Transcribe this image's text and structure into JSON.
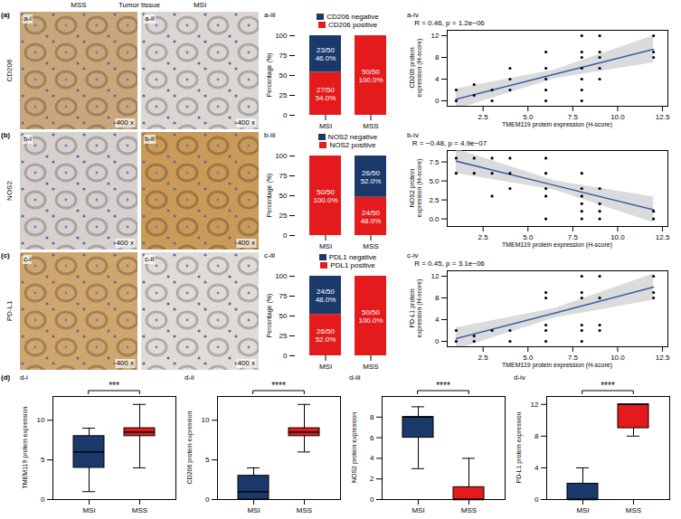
{
  "headers": [
    "MSS",
    "Tumor tissue",
    "MSI"
  ],
  "rows": [
    {
      "letter": "(a)",
      "marker": "CD206",
      "images": [
        {
          "panel": "a-i",
          "magnification": "400 x",
          "color": "#c9a77a"
        },
        {
          "panel": "a-ii",
          "magnification": "400 x",
          "color": "#dcd6d2"
        }
      ]
    },
    {
      "letter": "(b)",
      "marker": "NOS2",
      "images": [
        {
          "panel": "b-i",
          "magnification": "400 x",
          "color": "#d6d1cf"
        },
        {
          "panel": "b-ii",
          "magnification": "400 x",
          "color": "#c99a58"
        }
      ]
    },
    {
      "letter": "(c)",
      "marker": "PD-L1",
      "images": [
        {
          "panel": "c-i",
          "magnification": "400 x",
          "color": "#cfa66e"
        },
        {
          "panel": "c-ii",
          "magnification": "400 x",
          "color": "#e0dbd6"
        }
      ]
    }
  ],
  "row_d_letter": "(d)",
  "chart_data": [
    {
      "panel": "a-iii",
      "type": "bar",
      "stacked": true,
      "categories": [
        "MSI",
        "MSS"
      ],
      "ylabel": "Percentage (%)",
      "ylim": [
        0,
        100
      ],
      "yticks": [
        0,
        25,
        50,
        75,
        100
      ],
      "legend": "top",
      "data_labels": true,
      "series": [
        {
          "name": "CD206 negative",
          "color": "#1b3a6b",
          "values": [
            46,
            0
          ],
          "value_labels": [
            "23/50\n46.0%",
            null
          ]
        },
        {
          "name": "CD206 positive",
          "color": "#e41a1c",
          "values": [
            54,
            100
          ],
          "value_labels": [
            "27/50\n54.0%",
            "50/50\n100.0%"
          ]
        }
      ]
    },
    {
      "panel": "a-iv",
      "type": "scatter",
      "color": "#000000",
      "xlabel": "TMEM119 protein expression (H-score)",
      "ylabel": "CD206 protein expression (H-score)",
      "xlim": [
        0.5,
        12.8
      ],
      "xticks": [
        2.5,
        {
          "value": 5,
          "label": "5.0"
        },
        7.5,
        {
          "value": 10,
          "label": "10.0"
        },
        12.5
      ],
      "ylim": [
        -1,
        13
      ],
      "yticks": [
        0,
        4,
        8,
        12
      ],
      "annotation": "R = 0.46, p = 1.2e−06",
      "x": [
        1,
        1,
        2,
        2,
        3,
        3,
        4,
        4,
        4,
        6,
        6,
        6,
        6,
        6,
        8,
        8,
        8,
        8,
        8,
        8,
        8,
        9,
        9,
        9,
        9,
        9,
        12,
        12,
        12
      ],
      "y": [
        0,
        2,
        1,
        3,
        0,
        2,
        2,
        4,
        6,
        0,
        2,
        4,
        6,
        9,
        0,
        2,
        4,
        6,
        8,
        9,
        12,
        4,
        6,
        8,
        9,
        12,
        8,
        9,
        12
      ],
      "fit": {
        "color": "#3a5ea8",
        "x": [
          1,
          6.5,
          12
        ],
        "y": [
          0.3,
          4.9,
          9.5
        ],
        "lower": [
          -1.6,
          4.1,
          7.0
        ],
        "upper": [
          2.2,
          5.7,
          12.0
        ]
      }
    },
    {
      "panel": "b-iii",
      "type": "bar",
      "stacked": true,
      "categories": [
        "MSI",
        "MSS"
      ],
      "ylabel": "Percentage (%)",
      "ylim": [
        0,
        100
      ],
      "yticks": [
        0,
        25,
        50,
        75,
        100
      ],
      "legend": "top",
      "data_labels": true,
      "series": [
        {
          "name": "NOS2 negative",
          "color": "#1b3a6b",
          "values": [
            0,
            52
          ],
          "value_labels": [
            null,
            "26/50\n52.0%"
          ]
        },
        {
          "name": "NOS2 positive",
          "color": "#e41a1c",
          "values": [
            100,
            48
          ],
          "value_labels": [
            "50/50\n100.0%",
            "24/50\n48.0%"
          ]
        }
      ]
    },
    {
      "panel": "b-iv",
      "type": "scatter",
      "color": "#000000",
      "xlabel": "TMEM119 protein expression (H-score)",
      "ylabel": "NOS2 protein expression (H-score)",
      "xlim": [
        0.5,
        12.8
      ],
      "xticks": [
        2.5,
        {
          "value": 5,
          "label": "5.0"
        },
        7.5,
        {
          "value": 10,
          "label": "10.0"
        },
        12.5
      ],
      "ylim": [
        -1,
        9
      ],
      "yticks": [
        {
          "value": 0,
          "label": "0.0"
        },
        2.5,
        {
          "value": 5,
          "label": "5.0"
        },
        7.5
      ],
      "annotation": "R = −0.48, p = 4.9e−07",
      "x": [
        1,
        1,
        2,
        2,
        3,
        3,
        3,
        4,
        4,
        4,
        6,
        6,
        6,
        6,
        6,
        8,
        8,
        8,
        8,
        8,
        8,
        9,
        9,
        9,
        9,
        12,
        12
      ],
      "y": [
        6,
        8,
        6,
        8,
        3,
        6,
        8,
        4,
        6,
        8,
        0,
        3,
        4,
        6,
        8,
        0,
        1,
        2,
        3,
        4,
        6,
        0,
        1,
        2,
        4,
        0,
        1
      ],
      "fit": {
        "color": "#3a5ea8",
        "x": [
          1,
          6.5,
          12
        ],
        "y": [
          7.6,
          4.4,
          1.2
        ],
        "lower": [
          6.0,
          3.8,
          -0.5
        ],
        "upper": [
          9.2,
          5.0,
          2.9
        ]
      }
    },
    {
      "panel": "c-iii",
      "type": "bar",
      "stacked": true,
      "categories": [
        "MSI",
        "MSS"
      ],
      "ylabel": "Percentage (%)",
      "ylim": [
        0,
        100
      ],
      "yticks": [
        0,
        25,
        50,
        75,
        100
      ],
      "legend": "top",
      "data_labels": true,
      "series": [
        {
          "name": "PDL1 negative",
          "color": "#1b3a6b",
          "values": [
            48,
            0
          ],
          "value_labels": [
            "24/50\n48.0%",
            null
          ]
        },
        {
          "name": "PDL1 positive",
          "color": "#e41a1c",
          "values": [
            52,
            100
          ],
          "value_labels": [
            "26/50\n52.0%",
            "50/50\n100.0%"
          ]
        }
      ]
    },
    {
      "panel": "c-iv",
      "type": "scatter",
      "color": "#000000",
      "xlabel": "TMEM119 protein expression (H-score)",
      "ylabel": "PD-L1 protein expression (H-score)",
      "xlim": [
        0.5,
        12.8
      ],
      "xticks": [
        2.5,
        {
          "value": 5,
          "label": "5.0"
        },
        7.5,
        {
          "value": 10,
          "label": "10.0"
        },
        12.5
      ],
      "ylim": [
        -1,
        13
      ],
      "yticks": [
        0,
        4,
        8,
        12
      ],
      "annotation": "R = 0.45, p = 3.1e−06",
      "x": [
        1,
        1,
        2,
        2,
        3,
        4,
        4,
        6,
        6,
        6,
        6,
        6,
        8,
        8,
        8,
        8,
        8,
        8,
        9,
        9,
        9,
        9,
        12,
        12,
        12
      ],
      "y": [
        0,
        2,
        0,
        1,
        2,
        0,
        2,
        0,
        2,
        3,
        8,
        9,
        0,
        2,
        3,
        8,
        9,
        12,
        2,
        3,
        8,
        12,
        8,
        9,
        12
      ],
      "fit": {
        "color": "#3a5ea8",
        "x": [
          1,
          6.5,
          12
        ],
        "y": [
          0.5,
          5.2,
          10.0
        ],
        "lower": [
          -1.5,
          4.3,
          7.6
        ],
        "upper": [
          2.5,
          6.1,
          12.4
        ]
      }
    },
    {
      "panel": "d-i",
      "type": "box",
      "categories": [
        "MSI",
        "MSS"
      ],
      "colors": [
        "#1b3a6b",
        "#e41a1c"
      ],
      "ylabel": "TMEM119 protein expression",
      "ylim": [
        0,
        13
      ],
      "yticks": [
        0,
        5,
        10
      ],
      "annotation": "***",
      "boxes": {
        "min": [
          1,
          4
        ],
        "q1": [
          4,
          8
        ],
        "median": [
          6,
          8.5
        ],
        "q3": [
          8,
          9
        ],
        "max": [
          9,
          12
        ]
      }
    },
    {
      "panel": "d-ii",
      "type": "box",
      "categories": [
        "MSI",
        "MSS"
      ],
      "colors": [
        "#1b3a6b",
        "#e41a1c"
      ],
      "ylabel": "CD206 protein expression",
      "ylim": [
        0,
        13
      ],
      "yticks": [
        0,
        5,
        10
      ],
      "annotation": "****",
      "boxes": {
        "min": [
          0,
          6
        ],
        "q1": [
          0,
          8
        ],
        "median": [
          1,
          8.5
        ],
        "q3": [
          3,
          9
        ],
        "max": [
          4,
          12
        ]
      }
    },
    {
      "panel": "d-iii",
      "type": "box",
      "categories": [
        "MSI",
        "MSS"
      ],
      "colors": [
        "#1b3a6b",
        "#e41a1c"
      ],
      "ylabel": "NOS2 protein expression",
      "ylim": [
        0,
        10
      ],
      "yticks": [
        0,
        2,
        4,
        6,
        8
      ],
      "annotation": "****",
      "boxes": {
        "min": [
          3,
          0
        ],
        "q1": [
          6,
          0
        ],
        "median": [
          8,
          0
        ],
        "q3": [
          8,
          1.2
        ],
        "max": [
          9,
          4
        ]
      }
    },
    {
      "panel": "d-iv",
      "type": "box",
      "categories": [
        "MSI",
        "MSS"
      ],
      "colors": [
        "#1b3a6b",
        "#e41a1c"
      ],
      "ylabel": "PD-L1 protein expression",
      "ylim": [
        0,
        13
      ],
      "yticks": [
        0,
        4,
        8,
        12
      ],
      "annotation": "****",
      "boxes": {
        "min": [
          0,
          8
        ],
        "q1": [
          0,
          9
        ],
        "median": [
          0,
          12
        ],
        "q3": [
          2,
          12
        ],
        "max": [
          4,
          12
        ]
      }
    }
  ]
}
